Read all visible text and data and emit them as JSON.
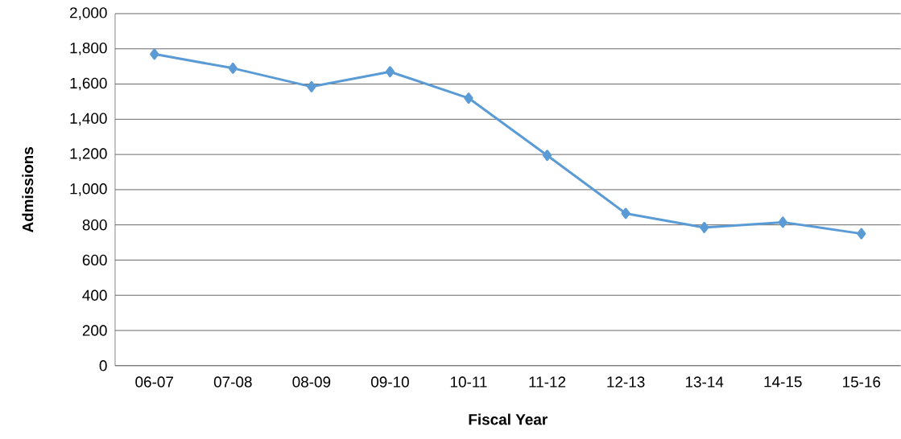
{
  "chart_data": {
    "type": "line",
    "xlabel": "Fiscal Year",
    "ylabel": "Admissions",
    "categories": [
      "06-07",
      "07-08",
      "08-09",
      "09-10",
      "10-11",
      "11-12",
      "12-13",
      "13-14",
      "14-15",
      "15-16"
    ],
    "values": [
      1770,
      1690,
      1585,
      1670,
      1520,
      1195,
      865,
      785,
      815,
      750
    ],
    "color": "#5b9bd5",
    "marker": "diamond",
    "line_style": "solid",
    "ylim": [
      0,
      2000
    ],
    "yticks": [
      {
        "value": 0,
        "label": "0"
      },
      {
        "value": 200,
        "label": "200"
      },
      {
        "value": 400,
        "label": "400"
      },
      {
        "value": 600,
        "label": "600"
      },
      {
        "value": 800,
        "label": "800"
      },
      {
        "value": 1000,
        "label": "1,000"
      },
      {
        "value": 1200,
        "label": "1,200"
      },
      {
        "value": 1400,
        "label": "1,400"
      },
      {
        "value": 1600,
        "label": "1,600"
      },
      {
        "value": 1800,
        "label": "1,800"
      },
      {
        "value": 2000,
        "label": "2,000"
      }
    ],
    "grid": "y"
  }
}
